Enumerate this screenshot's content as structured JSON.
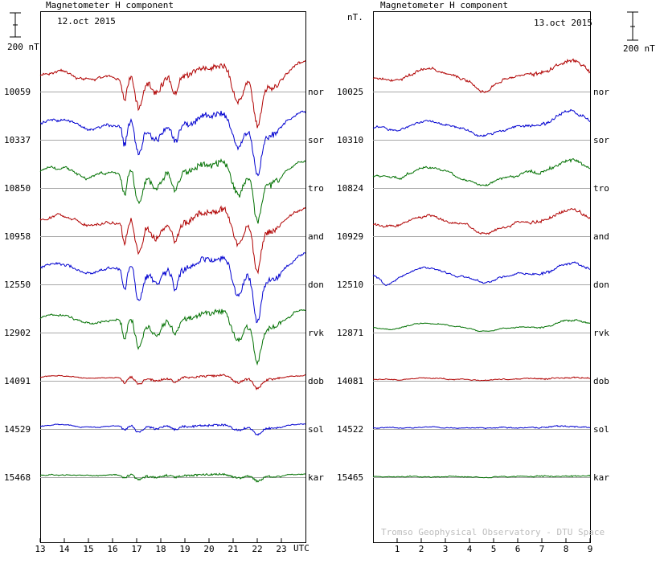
{
  "chart_data": [
    {
      "type": "line",
      "title": "Magnetometer H component",
      "date": "12.oct 2015",
      "xlabel": "UTC",
      "x_ticks": [
        "13",
        "14",
        "15",
        "16",
        "17",
        "18",
        "19",
        "20",
        "21",
        "22",
        "23"
      ],
      "x_range_hours": [
        13,
        24
      ],
      "scale_bar": "200 nT",
      "unit_label": "nT.",
      "stations": [
        {
          "code": "nor",
          "baseline": "10059",
          "color": "#b00000"
        },
        {
          "code": "sor",
          "baseline": "10337",
          "color": "#0000d0"
        },
        {
          "code": "tro",
          "baseline": "10850",
          "color": "#007000"
        },
        {
          "code": "and",
          "baseline": "10958",
          "color": "#b00000"
        },
        {
          "code": "don",
          "baseline": "12550",
          "color": "#0000d0"
        },
        {
          "code": "rvk",
          "baseline": "12902",
          "color": "#007000"
        },
        {
          "code": "dob",
          "baseline": "14091",
          "color": "#b00000"
        },
        {
          "code": "sol",
          "baseline": "14529",
          "color": "#0000d0"
        },
        {
          "code": "kar",
          "baseline": "15468",
          "color": "#007000"
        }
      ]
    },
    {
      "type": "line",
      "title": "Magnetometer H component",
      "date": "13.oct 2015",
      "x_ticks": [
        "1",
        "2",
        "3",
        "4",
        "5",
        "6",
        "7",
        "8",
        "9"
      ],
      "x_range_hours": [
        0,
        9
      ],
      "scale_bar": "200 nT",
      "watermark": "Tromso Geophysical Observatory - DTU Space",
      "stations": [
        {
          "code": "nor",
          "baseline": "10025",
          "color": "#b00000"
        },
        {
          "code": "sor",
          "baseline": "10310",
          "color": "#0000d0"
        },
        {
          "code": "tro",
          "baseline": "10824",
          "color": "#007000"
        },
        {
          "code": "and",
          "baseline": "10929",
          "color": "#b00000"
        },
        {
          "code": "don",
          "baseline": "12510",
          "color": "#0000d0"
        },
        {
          "code": "rvk",
          "baseline": "12871",
          "color": "#007000"
        },
        {
          "code": "dob",
          "baseline": "14081",
          "color": "#b00000"
        },
        {
          "code": "sol",
          "baseline": "14522",
          "color": "#0000d0"
        },
        {
          "code": "kar",
          "baseline": "15465",
          "color": "#007000"
        }
      ]
    }
  ]
}
